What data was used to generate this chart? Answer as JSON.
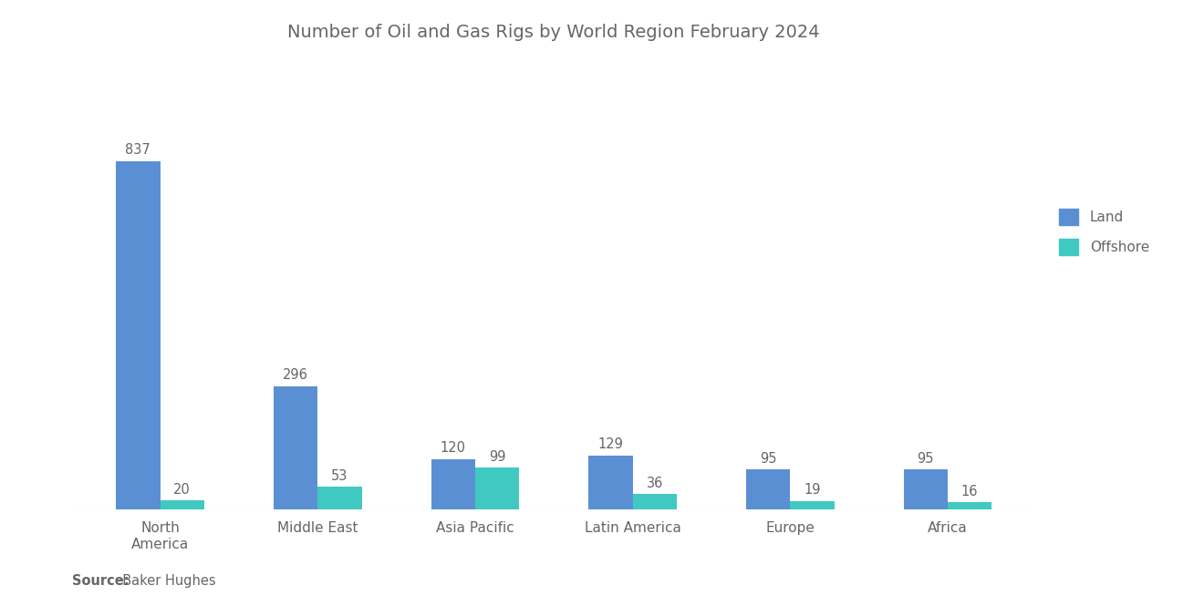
{
  "title": "Number of Oil and Gas Rigs by World Region February 2024",
  "categories": [
    "North\nAmerica",
    "Middle East",
    "Asia Pacific",
    "Latin America",
    "Europe",
    "Africa"
  ],
  "land_values": [
    837,
    296,
    120,
    129,
    95,
    95
  ],
  "offshore_values": [
    20,
    53,
    99,
    36,
    19,
    16
  ],
  "land_color": "#5B8FD4",
  "offshore_color": "#40C9C0",
  "background_color": "#ffffff",
  "title_fontsize": 14,
  "label_fontsize": 10.5,
  "tick_fontsize": 11,
  "legend_labels": [
    "Land",
    "Offshore"
  ],
  "source_label_bold": "Source:",
  "source_label_normal": "  Baker Hughes",
  "bar_width": 0.28,
  "ylim": [
    0,
    1050
  ],
  "text_color": "#666666"
}
